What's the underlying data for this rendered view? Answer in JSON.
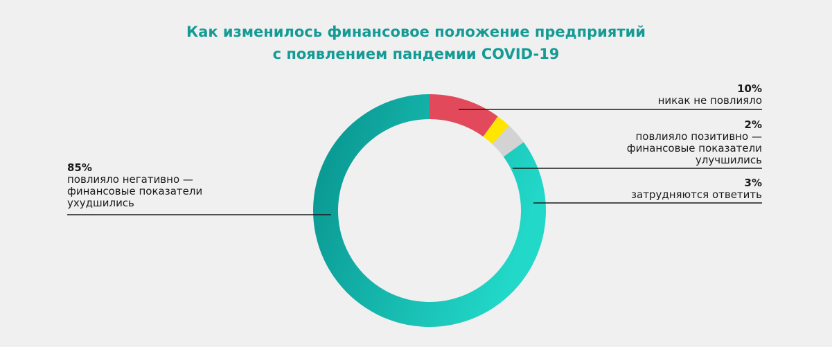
{
  "title": {
    "line1": "Как изменилось финансовое положение предприятий",
    "line2": "с появлением пандемии COVID-19"
  },
  "colors": {
    "title": "#149b95",
    "negative_start": "#07908c",
    "negative_end": "#22d8c8",
    "none": "#e24a5b",
    "positive": "#ffe500",
    "unsure": "#d3d3d3",
    "leader": "#1a1a1a"
  },
  "chart_data": {
    "type": "pie",
    "title": "Как изменилось финансовое положение предприятий с появлением пандемии COVID-19",
    "slices": [
      {
        "key": "none",
        "value": 10,
        "percent_label": "10%",
        "label_lines": [
          "никак не повлияло"
        ]
      },
      {
        "key": "positive",
        "value": 2,
        "percent_label": "2%",
        "label_lines": [
          "повлияло позитивно —",
          "финансовые показатели",
          "улучшились"
        ]
      },
      {
        "key": "unsure",
        "value": 3,
        "percent_label": "3%",
        "label_lines": [
          "затрудняются ответить"
        ]
      },
      {
        "key": "negative",
        "value": 85,
        "percent_label": "85%",
        "label_lines": [
          "повлияло негативно —",
          "финансовые показатели",
          "ухудшились"
        ]
      }
    ]
  }
}
